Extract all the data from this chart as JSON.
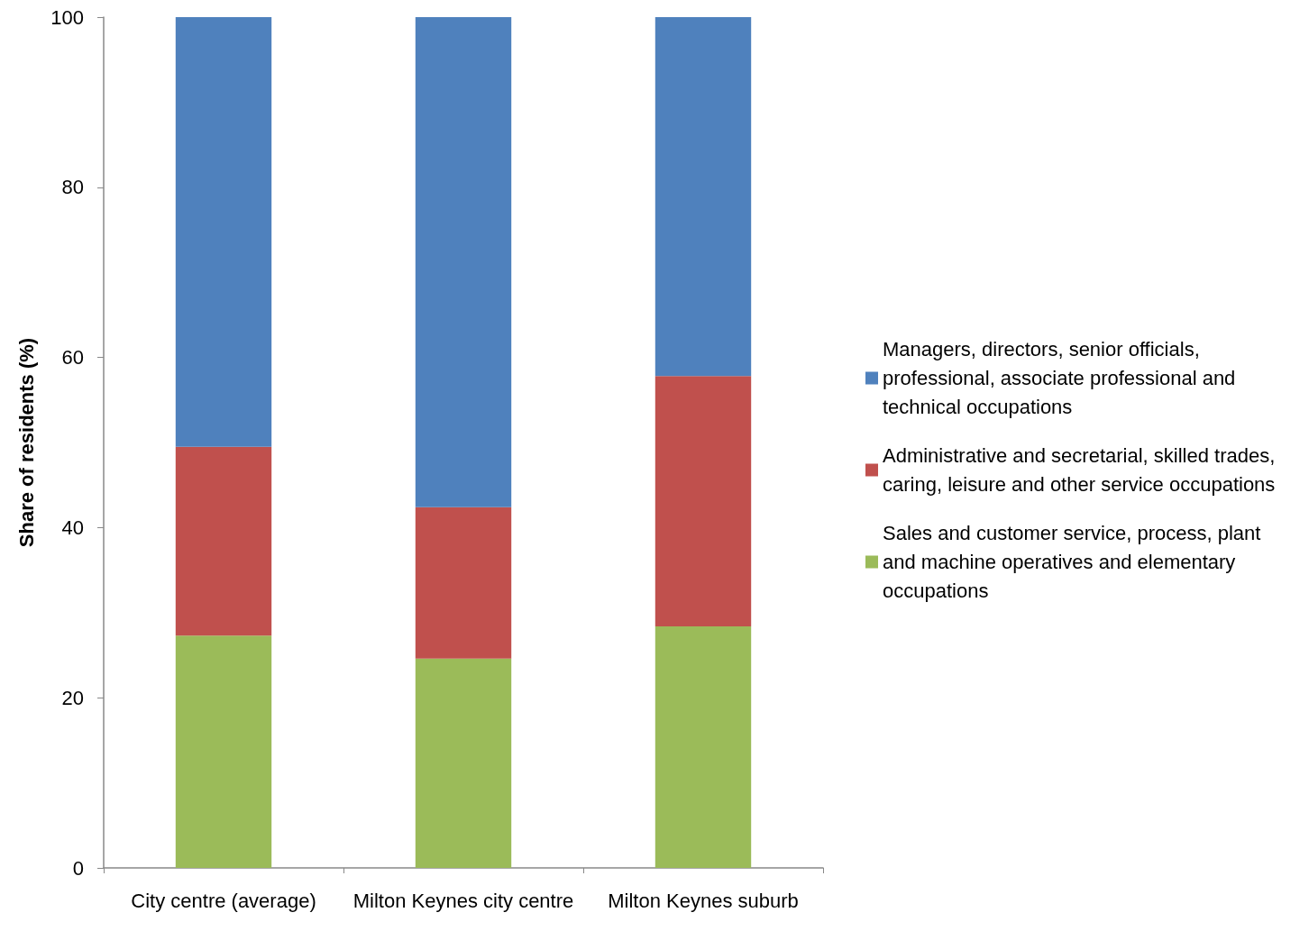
{
  "chart_data": {
    "type": "bar",
    "stacked": true,
    "ylabel": "Share of residents (%)",
    "categories": [
      "City centre (average)",
      "Milton Keynes city centre",
      "Milton Keynes suburb"
    ],
    "series": [
      {
        "name": "Sales and customer service, process, plant and machine operatives and elementary occupations",
        "color": "#9bbb59",
        "values": [
          27.3,
          24.6,
          28.4
        ]
      },
      {
        "name": "Administrative and secretarial, skilled trades, caring, leisure and other service occupations",
        "color": "#c0504d",
        "values": [
          22.2,
          17.8,
          29.4
        ]
      },
      {
        "name": "Managers, directors, senior officials, professional, associate professional and technical occupations",
        "color": "#4f81bd",
        "values": [
          50.5,
          57.6,
          42.2
        ]
      }
    ],
    "ylim": [
      0,
      100
    ],
    "yticks": [
      0,
      20,
      40,
      60,
      80,
      100
    ],
    "grid": false,
    "legend": "right"
  }
}
